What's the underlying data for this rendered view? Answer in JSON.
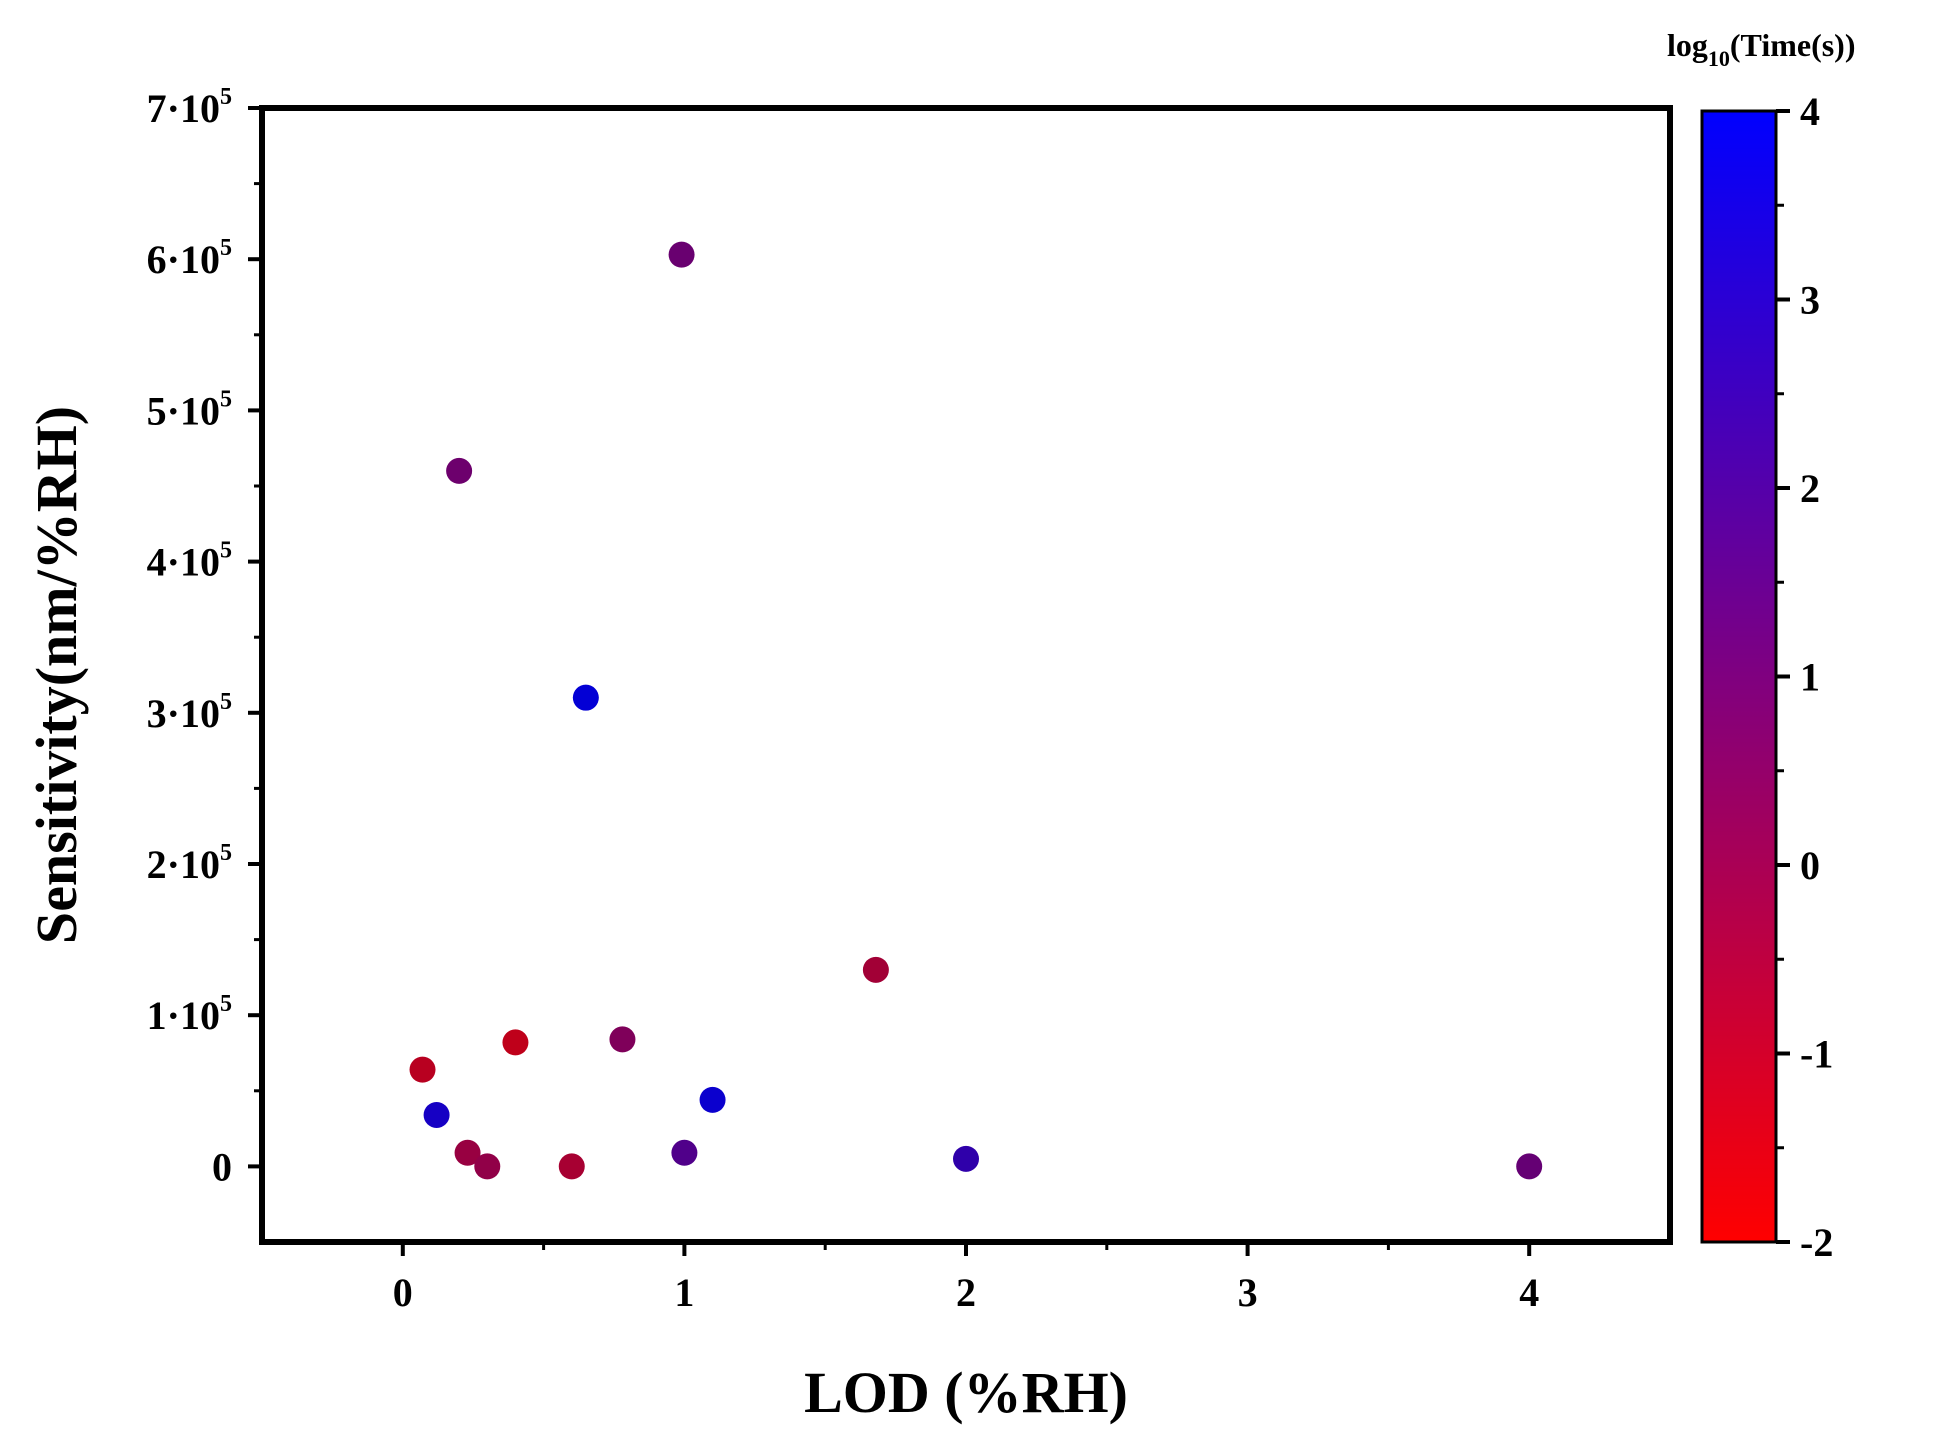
{
  "chart_data": {
    "type": "scatter",
    "title": "",
    "xlabel": "LOD (%RH)",
    "ylabel": "Sensitivity(nm/%RH)",
    "xlim": [
      -0.5,
      4.5
    ],
    "ylim": [
      -50000,
      700000
    ],
    "x_ticks": [
      0,
      1,
      2,
      3,
      4
    ],
    "x_tick_labels": [
      "0",
      "1",
      "2",
      "3",
      "4"
    ],
    "y_ticks": [
      0,
      100000,
      200000,
      300000,
      400000,
      500000,
      600000,
      700000
    ],
    "y_tick_labels": [
      {
        "mantissa": "0",
        "exp": ""
      },
      {
        "mantissa": "1·10",
        "exp": "5"
      },
      {
        "mantissa": "2·10",
        "exp": "5"
      },
      {
        "mantissa": "3·10",
        "exp": "5"
      },
      {
        "mantissa": "4·10",
        "exp": "5"
      },
      {
        "mantissa": "5·10",
        "exp": "5"
      },
      {
        "mantissa": "6·10",
        "exp": "5"
      },
      {
        "mantissa": "7·10",
        "exp": "5"
      }
    ],
    "grid": false,
    "colorbar": {
      "title_main": "log",
      "title_sub": "10",
      "title_rest": "(Time(s))",
      "range": [
        -2,
        4
      ],
      "ticks": [
        "-2",
        "-1",
        "0",
        "1",
        "2",
        "3",
        "4"
      ],
      "color_low": "#ff0000",
      "color_high": "#0000ff"
    },
    "points": [
      {
        "x": 0.07,
        "y": 64000,
        "c": -1.1
      },
      {
        "x": 0.12,
        "y": 34000,
        "c": 3.4
      },
      {
        "x": 0.2,
        "y": 460000,
        "c": 1.0
      },
      {
        "x": 0.23,
        "y": 9000,
        "c": -0.2
      },
      {
        "x": 0.3,
        "y": 0,
        "c": 0.0
      },
      {
        "x": 0.4,
        "y": 82000,
        "c": -1.3
      },
      {
        "x": 0.6,
        "y": 0,
        "c": -0.6
      },
      {
        "x": 0.65,
        "y": 310000,
        "c": 3.9
      },
      {
        "x": 0.78,
        "y": 84000,
        "c": 0.5
      },
      {
        "x": 0.99,
        "y": 603000,
        "c": 1.1
      },
      {
        "x": 1.0,
        "y": 9000,
        "c": 1.8
      },
      {
        "x": 1.1,
        "y": 44000,
        "c": 3.7
      },
      {
        "x": 1.68,
        "y": 130000,
        "c": -0.5
      },
      {
        "x": 2.0,
        "y": 5000,
        "c": 2.7
      },
      {
        "x": 4.0,
        "y": 0,
        "c": 1.2
      }
    ]
  }
}
